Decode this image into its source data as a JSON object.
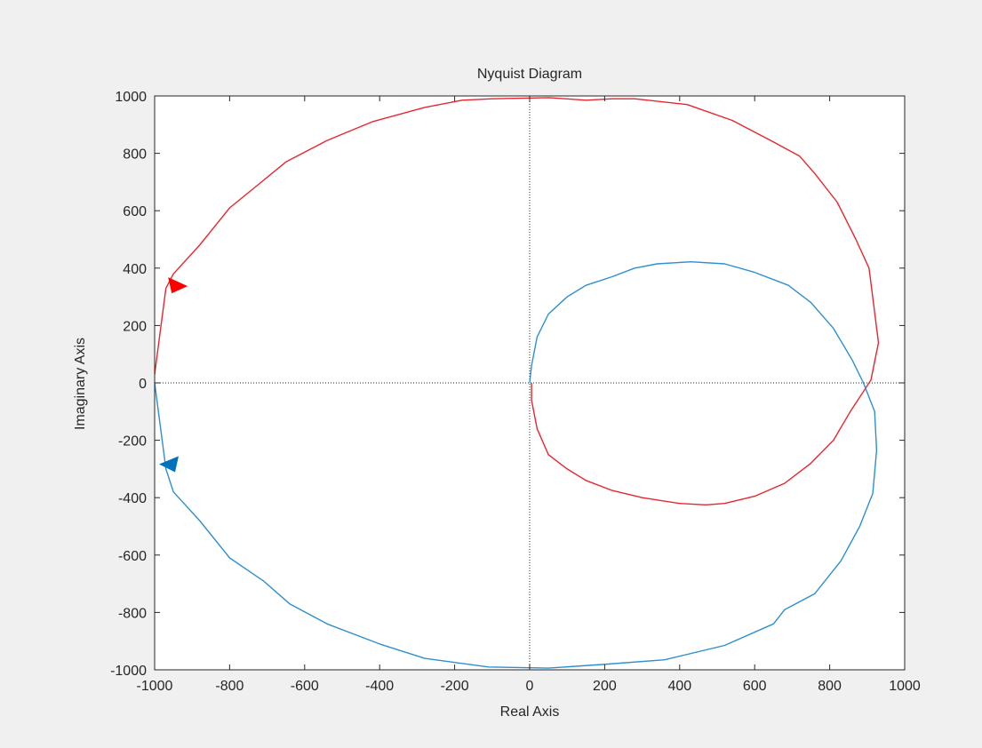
{
  "chart_data": {
    "type": "line",
    "title": "Nyquist Diagram",
    "xlabel": "Real Axis",
    "ylabel": "Imaginary Axis",
    "xlim": [
      -1000,
      1000
    ],
    "ylim": [
      -1000,
      1000
    ],
    "xticks": [
      -1000,
      -800,
      -600,
      -400,
      -200,
      0,
      200,
      400,
      600,
      800,
      1000
    ],
    "yticks": [
      -1000,
      -800,
      -600,
      -400,
      -200,
      0,
      200,
      400,
      600,
      800,
      1000
    ],
    "grid": false,
    "zero_lines": "dotted",
    "colors": {
      "positive_freq": "#e8262d",
      "negative_freq": "#2e8fd0",
      "arrow_blue": "#0072bd",
      "arrow_red": "#ff0000"
    },
    "series": [
      {
        "color": "#e8262d",
        "x": [
          5,
          5,
          20,
          50,
          100,
          150,
          220,
          300,
          400,
          470,
          520,
          600,
          680,
          750,
          810,
          855,
          895,
          910,
          930,
          905,
          870,
          820,
          760,
          720,
          650,
          540,
          420,
          280,
          220,
          150,
          52,
          -100,
          -180,
          -280,
          -420,
          -540,
          -650,
          -720,
          -800,
          -880,
          -950,
          -970,
          -1000
        ],
        "y": [
          0,
          -60,
          -160,
          -250,
          -300,
          -340,
          -375,
          -400,
          -420,
          -425,
          -420,
          -395,
          -350,
          -280,
          -200,
          -100,
          -20,
          10,
          140,
          400,
          500,
          630,
          730,
          790,
          840,
          915,
          970,
          990,
          990,
          985,
          994,
          990,
          985,
          960,
          910,
          845,
          770,
          695,
          610,
          480,
          380,
          330,
          30
        ]
      },
      {
        "color": "#2e8fd0",
        "x": [
          0,
          5,
          20,
          50,
          100,
          150,
          220,
          280,
          340,
          430,
          520,
          600,
          690,
          750,
          810,
          860,
          890,
          920,
          925,
          915,
          880,
          830,
          760,
          680,
          650,
          520,
          360,
          210,
          50,
          -110,
          -280,
          -400,
          -540,
          -640,
          -710,
          -800,
          -880,
          -950,
          -970,
          -1000
        ],
        "y": [
          0,
          60,
          160,
          240,
          300,
          340,
          370,
          400,
          415,
          422,
          415,
          385,
          340,
          280,
          190,
          80,
          0,
          -100,
          -235,
          -385,
          -500,
          -620,
          -735,
          -790,
          -840,
          -915,
          -965,
          -980,
          -994,
          -990,
          -960,
          -910,
          -840,
          -770,
          -690,
          -610,
          -480,
          -380,
          -300,
          0
        ]
      }
    ],
    "arrows": [
      {
        "color": "#ff0000",
        "x": -945,
        "y": 340,
        "direction": "down"
      },
      {
        "color": "#0072bd",
        "x": -955,
        "y": -280,
        "direction": "left"
      }
    ]
  }
}
